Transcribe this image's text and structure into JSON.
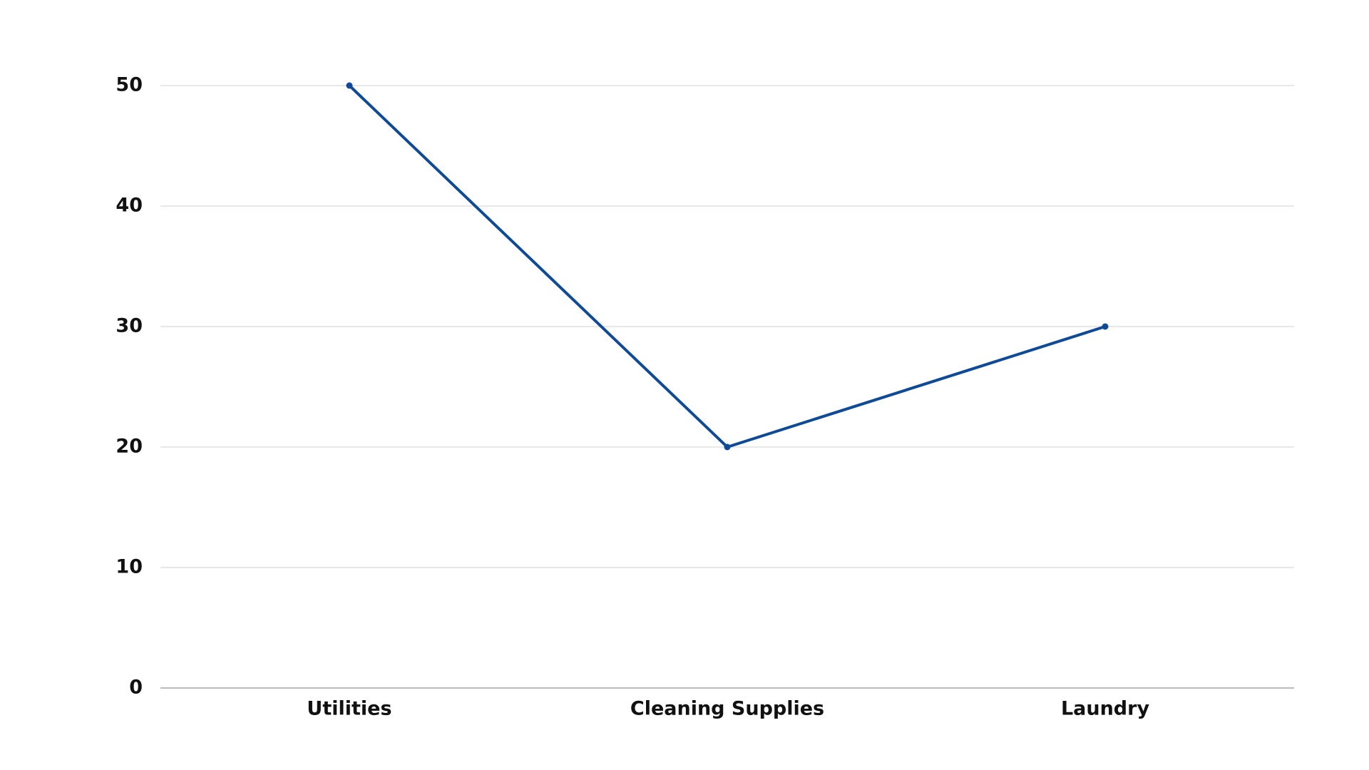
{
  "chart_data": {
    "type": "line",
    "title": "",
    "xlabel": "",
    "ylabel": "",
    "categories": [
      "Utilities",
      "Cleaning Supplies",
      "Laundry"
    ],
    "series": [
      {
        "values": [
          50,
          20,
          30
        ],
        "color": "#0f4a96"
      }
    ],
    "ylim": [
      0,
      50
    ],
    "yticks": [
      0,
      10,
      20,
      30,
      40,
      50
    ],
    "grid": true,
    "legend": "none"
  }
}
